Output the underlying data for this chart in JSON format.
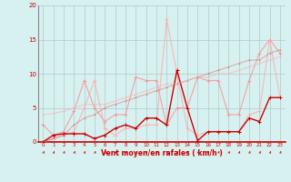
{
  "x": [
    0,
    1,
    2,
    3,
    4,
    5,
    6,
    7,
    8,
    9,
    10,
    11,
    12,
    13,
    14,
    15,
    16,
    17,
    18,
    19,
    20,
    21,
    22,
    23
  ],
  "series": [
    {
      "color": "#ff8888",
      "alpha": 0.75,
      "linewidth": 0.8,
      "markersize": 2.5,
      "y": [
        2.5,
        1.0,
        1.5,
        4.5,
        9.0,
        5.0,
        3.0,
        4.0,
        4.0,
        9.5,
        9.0,
        9.0,
        2.5,
        5.0,
        5.0,
        9.5,
        9.0,
        9.0,
        4.0,
        4.0,
        9.0,
        13.0,
        15.0,
        13.0
      ]
    },
    {
      "color": "#ffaaaa",
      "alpha": 0.8,
      "linewidth": 0.8,
      "markersize": 2.5,
      "y": [
        0,
        0.5,
        1.0,
        1.5,
        5.0,
        9.0,
        2.0,
        1.0,
        2.0,
        2.0,
        2.5,
        2.5,
        18.0,
        10.0,
        2.0,
        1.0,
        1.5,
        1.5,
        1.5,
        1.5,
        4.0,
        4.5,
        15.0,
        6.5
      ]
    },
    {
      "color": "#cc0000",
      "alpha": 1.0,
      "linewidth": 1.0,
      "markersize": 2.5,
      "y": [
        0,
        1.0,
        1.2,
        1.2,
        1.2,
        0.5,
        1.0,
        2.0,
        2.5,
        2.0,
        3.5,
        3.5,
        2.5,
        10.5,
        5.0,
        0.2,
        1.5,
        1.5,
        1.5,
        1.5,
        3.5,
        3.0,
        6.5,
        6.5
      ]
    },
    {
      "color": "#dd3333",
      "alpha": 0.35,
      "linewidth": 0.8,
      "markersize": 2.0,
      "y": [
        0,
        0.5,
        1.0,
        2.5,
        3.5,
        4.0,
        5.0,
        5.5,
        6.0,
        6.5,
        7.0,
        7.5,
        8.0,
        8.5,
        9.0,
        9.5,
        10.0,
        10.5,
        11.0,
        11.5,
        12.0,
        12.0,
        13.0,
        13.5
      ]
    },
    {
      "color": "#ffaaaa",
      "alpha": 0.55,
      "linewidth": 0.8,
      "markersize": 2.0,
      "y": [
        4.0,
        4.2,
        4.5,
        5.0,
        5.5,
        5.5,
        5.5,
        6.0,
        6.5,
        7.0,
        7.5,
        8.0,
        8.5,
        8.5,
        9.0,
        9.5,
        9.5,
        10.0,
        10.0,
        10.5,
        11.0,
        11.5,
        12.0,
        12.5
      ]
    }
  ],
  "xlabel": "Vent moyen/en rafales ( km/h )",
  "ylim": [
    0,
    20
  ],
  "xlim": [
    -0.5,
    23.5
  ],
  "yticks": [
    0,
    5,
    10,
    15,
    20
  ],
  "xticks": [
    0,
    1,
    2,
    3,
    4,
    5,
    6,
    7,
    8,
    9,
    10,
    11,
    12,
    13,
    14,
    15,
    16,
    17,
    18,
    19,
    20,
    21,
    22,
    23
  ],
  "bg_color": "#d7f0f0",
  "grid_color": "#b0c8c8",
  "tick_color": "#cc0000",
  "label_color": "#cc0000",
  "arrow_color": "#cc0000",
  "axis_color": "#888888"
}
